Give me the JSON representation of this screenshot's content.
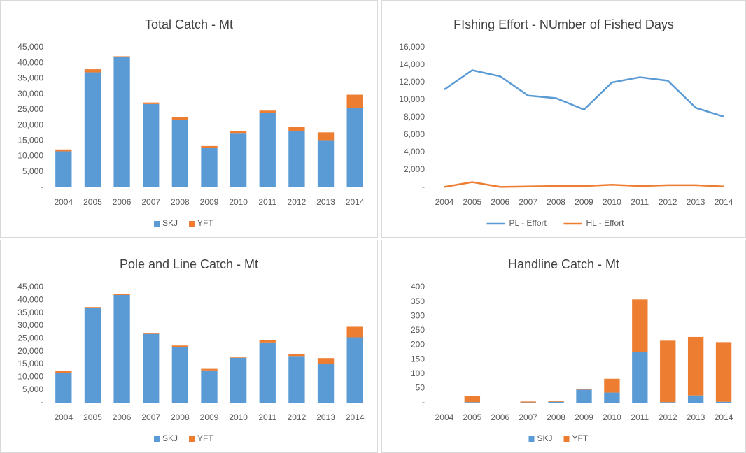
{
  "chart_data": [
    {
      "type": "bar",
      "stacked": true,
      "title": "Total Catch  - Mt",
      "categories": [
        "2004",
        "2005",
        "2006",
        "2007",
        "2008",
        "2009",
        "2010",
        "2011",
        "2012",
        "2013",
        "2014"
      ],
      "series": [
        {
          "name": "SKJ",
          "color": "#5b9bd5",
          "values": [
            11600,
            37000,
            42000,
            26800,
            21700,
            12600,
            17500,
            24000,
            18200,
            15200,
            25600
          ]
        },
        {
          "name": "YFT",
          "color": "#ed7d31",
          "values": [
            600,
            1000,
            200,
            500,
            800,
            700,
            600,
            700,
            1200,
            2500,
            4200
          ]
        }
      ],
      "ylim": [
        0,
        45000
      ],
      "yticks": [
        {
          "value": 0,
          "label": "-"
        },
        {
          "value": 5000,
          "label": "5,000"
        },
        {
          "value": 10000,
          "label": "10,000"
        },
        {
          "value": 15000,
          "label": "15,000"
        },
        {
          "value": 20000,
          "label": "20,000"
        },
        {
          "value": 25000,
          "label": "25,000"
        },
        {
          "value": 30000,
          "label": "30,000"
        },
        {
          "value": 35000,
          "label": "35,000"
        },
        {
          "value": 40000,
          "label": "40,000"
        },
        {
          "value": 45000,
          "label": "45,000"
        }
      ],
      "grid": false,
      "legend": "bottom"
    },
    {
      "type": "line",
      "title": "FIshing Effort - NUmber of Fished Days",
      "categories": [
        "2004",
        "2005",
        "2006",
        "2007",
        "2008",
        "2009",
        "2010",
        "2011",
        "2012",
        "2013",
        "2014"
      ],
      "series": [
        {
          "name": "PL - Effort",
          "color": "#5b9bd5",
          "values": [
            11200,
            13400,
            12700,
            10500,
            10200,
            8900,
            12000,
            12600,
            12200,
            9100,
            8100
          ]
        },
        {
          "name": "HL - Effort",
          "color": "#ed7d31",
          "values": [
            50,
            600,
            50,
            100,
            150,
            150,
            300,
            150,
            250,
            250,
            100
          ]
        }
      ],
      "ylim": [
        0,
        16000
      ],
      "yticks": [
        {
          "value": 0,
          "label": "-"
        },
        {
          "value": 2000,
          "label": "2,000"
        },
        {
          "value": 4000,
          "label": "4,000"
        },
        {
          "value": 6000,
          "label": "6,000"
        },
        {
          "value": 8000,
          "label": "8,000"
        },
        {
          "value": 10000,
          "label": "10,000"
        },
        {
          "value": 12000,
          "label": "12,000"
        },
        {
          "value": 14000,
          "label": "14,000"
        },
        {
          "value": 16000,
          "label": "16,000"
        }
      ],
      "grid": false,
      "legend": "bottom"
    },
    {
      "type": "bar",
      "stacked": true,
      "title": "Pole and Line Catch - Mt",
      "categories": [
        "2004",
        "2005",
        "2006",
        "2007",
        "2008",
        "2009",
        "2010",
        "2011",
        "2012",
        "2013",
        "2014"
      ],
      "series": [
        {
          "name": "SKJ",
          "color": "#5b9bd5",
          "values": [
            11700,
            37000,
            42000,
            26800,
            21700,
            12600,
            17500,
            23500,
            18200,
            15200,
            25500
          ]
        },
        {
          "name": "YFT",
          "color": "#ed7d31",
          "values": [
            700,
            300,
            300,
            200,
            600,
            600,
            200,
            1000,
            900,
            2200,
            4100
          ]
        }
      ],
      "ylim": [
        0,
        45000
      ],
      "yticks": [
        {
          "value": 0,
          "label": "-"
        },
        {
          "value": 5000,
          "label": "5,000"
        },
        {
          "value": 10000,
          "label": "10,000"
        },
        {
          "value": 15000,
          "label": "15,000"
        },
        {
          "value": 20000,
          "label": "20,000"
        },
        {
          "value": 25000,
          "label": "25,000"
        },
        {
          "value": 30000,
          "label": "30,000"
        },
        {
          "value": 35000,
          "label": "35,000"
        },
        {
          "value": 40000,
          "label": "40,000"
        },
        {
          "value": 45000,
          "label": "45,000"
        }
      ],
      "grid": false,
      "legend": "bottom"
    },
    {
      "type": "bar",
      "stacked": true,
      "title": "Handline Catch - Mt",
      "categories": [
        "2004",
        "2005",
        "2006",
        "2007",
        "2008",
        "2009",
        "2010",
        "2011",
        "2012",
        "2013",
        "2014"
      ],
      "series": [
        {
          "name": "SKJ",
          "color": "#5b9bd5",
          "values": [
            0,
            2,
            0,
            1,
            3,
            45,
            35,
            175,
            2,
            25,
            3
          ]
        },
        {
          "name": "YFT",
          "color": "#ed7d31",
          "values": [
            0,
            20,
            0,
            3,
            4,
            2,
            48,
            183,
            213,
            203,
            207
          ]
        }
      ],
      "ylim": [
        0,
        400
      ],
      "yticks": [
        {
          "value": 0,
          "label": "-"
        },
        50,
        100,
        150,
        200,
        250,
        300,
        350,
        400
      ],
      "grid": false,
      "legend": "bottom"
    }
  ]
}
